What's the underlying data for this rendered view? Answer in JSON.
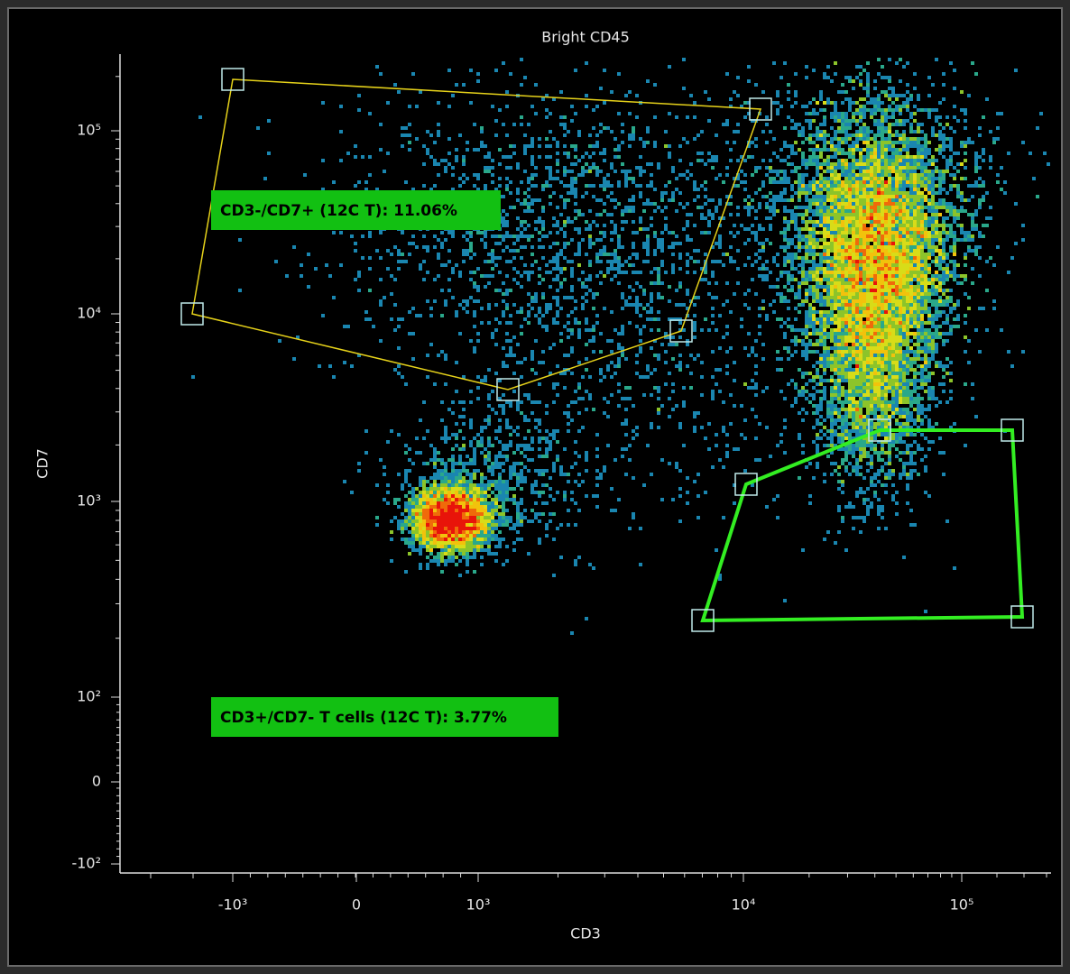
{
  "plot": {
    "title": "Bright CD45",
    "x_axis": {
      "label": "CD3",
      "ticks": [
        "-10³",
        "0",
        "10³",
        "10⁴",
        "10⁵"
      ]
    },
    "y_axis": {
      "label": "CD7",
      "ticks": [
        "10⁵",
        "10⁴",
        "10³",
        "10²",
        "0",
        "-10²"
      ]
    },
    "gates": [
      {
        "label": "CD3-/CD7+ (12C T): 11.06%"
      },
      {
        "label": "CD3+/CD7- T cells (12C T): 3.77%"
      }
    ]
  }
}
